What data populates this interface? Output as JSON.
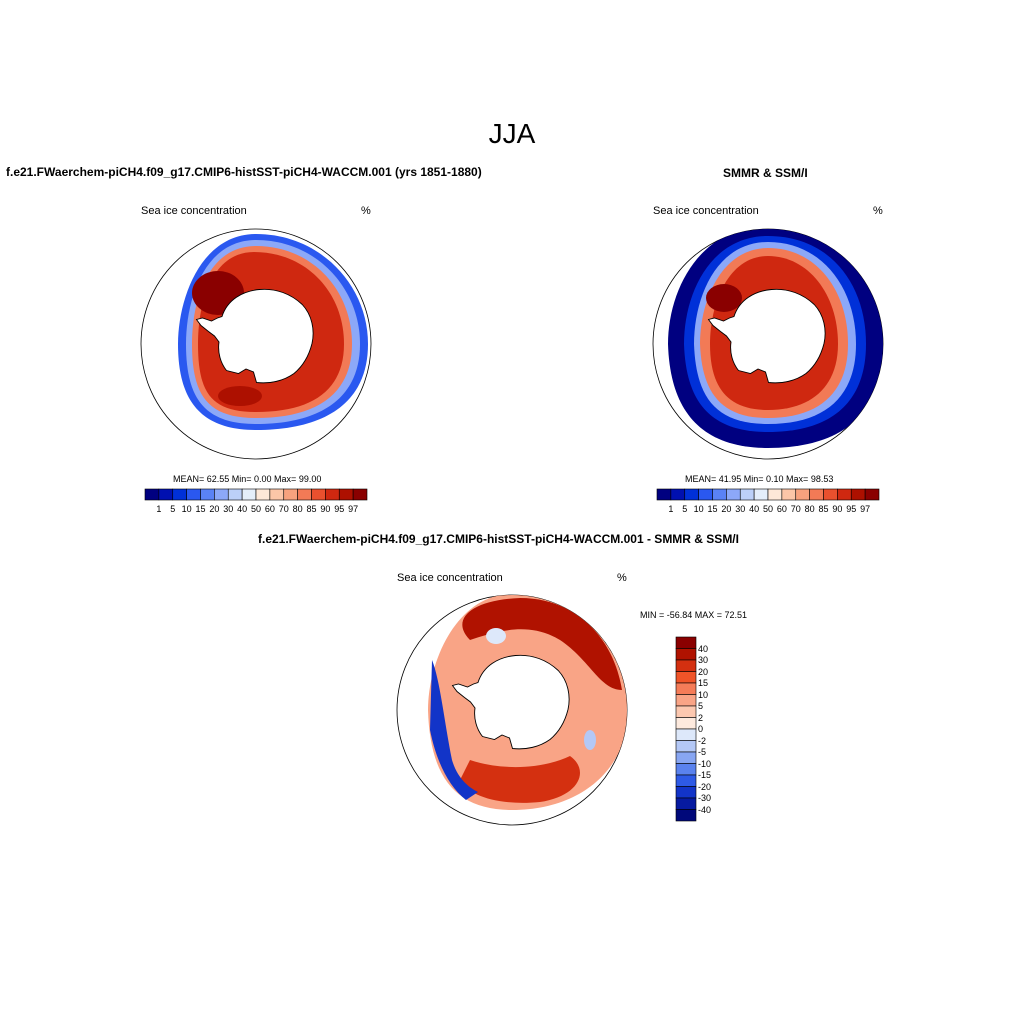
{
  "page": {
    "title": "JJA"
  },
  "panels": {
    "model": {
      "title": "f.e21.FWaerchem-piCH4.f09_g17.CMIP6-histSST-piCH4-WACCM.001 (yrs 1851-1880)",
      "variable": "Sea ice concentration",
      "units": "%",
      "stats": "MEAN=  62.55  Min=   0.00  Max=  99.00"
    },
    "obs": {
      "title": "SMMR & SSM/I",
      "variable": "Sea ice concentration",
      "units": "%",
      "stats": "MEAN=  41.95  Min=   0.10  Max=  98.53"
    },
    "diff": {
      "title": "f.e21.FWaerchem-piCH4.f09_g17.CMIP6-histSST-piCH4-WACCM.001 - SMMR & SSM/I",
      "variable": "Sea ice concentration",
      "units": "%",
      "minmax": "MIN = -56.84 MAX =  72.51"
    }
  },
  "colorbars": {
    "concentration": {
      "labels": [
        "1",
        "5",
        "10",
        "15",
        "20",
        "30",
        "40",
        "50",
        "60",
        "70",
        "80",
        "85",
        "90",
        "95",
        "97"
      ],
      "colors": [
        "#000080",
        "#0010b0",
        "#0030d8",
        "#2a58f0",
        "#5a82f5",
        "#8ca8f8",
        "#bcd0f8",
        "#e4eefa",
        "#fde8d8",
        "#fbc6a8",
        "#f7a27e",
        "#f27a56",
        "#e9502e",
        "#cf2810",
        "#ad1000",
        "#8a0000"
      ]
    },
    "difference": {
      "labels": [
        "40",
        "30",
        "20",
        "15",
        "10",
        "5",
        "2",
        "0",
        "-2",
        "-5",
        "-10",
        "-15",
        "-20",
        "-30",
        "-40"
      ],
      "colors": [
        "#8a0000",
        "#b01200",
        "#d43010",
        "#f05428",
        "#f57c58",
        "#f9a486",
        "#fcc8b0",
        "#fdeade",
        "#dde8fa",
        "#b4c8f6",
        "#88a6f2",
        "#5a82ee",
        "#2e5ae6",
        "#1234c8",
        "#061aa0",
        "#00087a"
      ]
    }
  }
}
